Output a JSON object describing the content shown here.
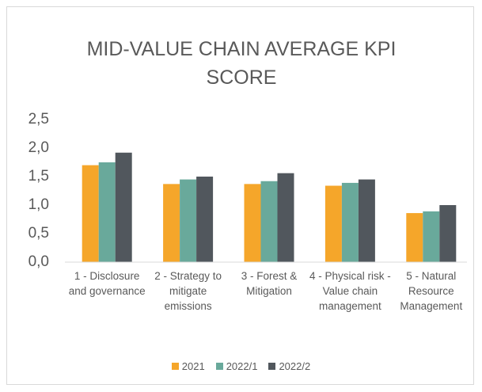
{
  "chart_data": {
    "type": "bar",
    "title": "MID-VALUE CHAIN AVERAGE KPI SCORE",
    "categories": [
      "1 - Disclosure and governance",
      "2 - Strategy to mitigate emissions",
      "3 - Forest & Mitigation",
      "4 - Physical risk - Value chain management",
      "5 - Natural Resource Management"
    ],
    "series": [
      {
        "name": "2021",
        "color": "#f5a62a",
        "values": [
          1.7,
          1.37,
          1.37,
          1.34,
          0.86
        ]
      },
      {
        "name": "2022/1",
        "color": "#69a99b",
        "values": [
          1.75,
          1.45,
          1.42,
          1.39,
          0.89
        ]
      },
      {
        "name": "2022/2",
        "color": "#51575d",
        "values": [
          1.92,
          1.5,
          1.56,
          1.45,
          1.0
        ]
      }
    ],
    "ylim": [
      0,
      2.5
    ],
    "yticks": [
      {
        "value": 0,
        "label": "0,0"
      },
      {
        "value": 0.5,
        "label": "0,5"
      },
      {
        "value": 1,
        "label": "1,0"
      },
      {
        "value": 1.5,
        "label": "1,5"
      },
      {
        "value": 2,
        "label": "2,0"
      },
      {
        "value": 2.5,
        "label": "2,5"
      }
    ],
    "grid": false,
    "legend": "bottom"
  }
}
